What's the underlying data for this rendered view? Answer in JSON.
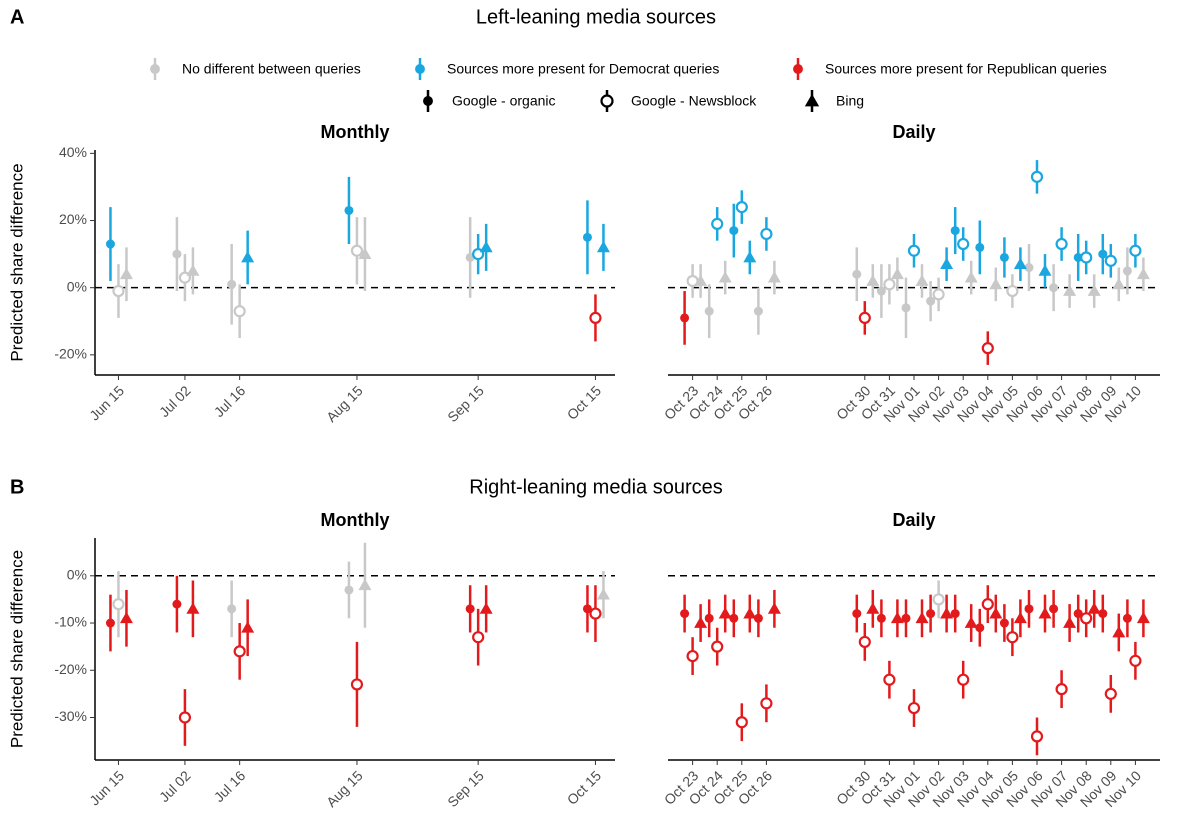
{
  "sections": [
    {
      "letter": "A",
      "title": "Left-leaning media sources"
    },
    {
      "letter": "B",
      "title": "Right-leaning media sources"
    }
  ],
  "color_legend": [
    {
      "label": "No different between queries",
      "color": "#c8c8c8"
    },
    {
      "label": "Sources more present for Democrat queries",
      "color": "#1aa7e0"
    },
    {
      "label": "Sources more present for Republican queries",
      "color": "#e31a1c"
    }
  ],
  "shape_legend": [
    {
      "label": "Google - organic",
      "marker": "circle"
    },
    {
      "label": "Google - Newsblock",
      "marker": "open-circle"
    },
    {
      "label": "Bing",
      "marker": "triangle"
    }
  ],
  "chart_data": [
    {
      "type": "errorbar",
      "title": "Monthly",
      "ylabel": "Predicted share difference",
      "x": [
        166,
        183,
        197,
        227,
        258,
        288
      ],
      "xlim": [
        160,
        293
      ],
      "xticks": [
        {
          "value": 166,
          "label": "Jun 15"
        },
        {
          "value": 183,
          "label": "Jul 02"
        },
        {
          "value": 197,
          "label": "Jul 16"
        },
        {
          "value": 227,
          "label": "Aug 15"
        },
        {
          "value": 258,
          "label": "Sep 15"
        },
        {
          "value": 288,
          "label": "Oct 15"
        }
      ],
      "ylim": [
        -26,
        41
      ],
      "yticks": [
        {
          "value": -20,
          "label": "-20%"
        },
        {
          "value": 0,
          "label": "0%"
        },
        {
          "value": 20,
          "label": "20%"
        },
        {
          "value": 40,
          "label": "40%"
        }
      ],
      "hline": 0,
      "series": [
        {
          "marker": "circle",
          "values": [
            13,
            10,
            1,
            23,
            9,
            15
          ],
          "errors": [
            11,
            11,
            12,
            10,
            12,
            11
          ],
          "colors": [
            "#1aa7e0",
            "#c8c8c8",
            "#c8c8c8",
            "#1aa7e0",
            "#c8c8c8",
            "#1aa7e0"
          ]
        },
        {
          "marker": "open-circle",
          "values": [
            -1,
            3,
            -7,
            11,
            10,
            -9
          ],
          "errors": [
            8,
            7,
            8,
            10,
            6,
            7
          ],
          "colors": [
            "#c8c8c8",
            "#c8c8c8",
            "#c8c8c8",
            "#c8c8c8",
            "#1aa7e0",
            "#e31a1c"
          ]
        },
        {
          "marker": "triangle",
          "values": [
            4,
            5,
            9,
            10,
            12,
            12
          ],
          "errors": [
            8,
            7,
            8,
            11,
            7,
            7
          ],
          "colors": [
            "#c8c8c8",
            "#c8c8c8",
            "#1aa7e0",
            "#c8c8c8",
            "#1aa7e0",
            "#1aa7e0"
          ]
        }
      ]
    },
    {
      "type": "errorbar",
      "title": "Daily",
      "x": [
        296,
        297,
        298,
        299,
        303,
        304,
        305,
        306,
        307,
        308,
        309,
        310,
        311,
        312,
        313,
        314
      ],
      "xlim": [
        295,
        315
      ],
      "xticks": [
        {
          "value": 296,
          "label": "Oct 23"
        },
        {
          "value": 297,
          "label": "Oct 24"
        },
        {
          "value": 298,
          "label": "Oct 25"
        },
        {
          "value": 299,
          "label": "Oct 26"
        },
        {
          "value": 303,
          "label": "Oct 30"
        },
        {
          "value": 304,
          "label": "Oct 31"
        },
        {
          "value": 305,
          "label": "Nov 01"
        },
        {
          "value": 306,
          "label": "Nov 02"
        },
        {
          "value": 307,
          "label": "Nov 03"
        },
        {
          "value": 308,
          "label": "Nov 04"
        },
        {
          "value": 309,
          "label": "Nov 05"
        },
        {
          "value": 310,
          "label": "Nov 06"
        },
        {
          "value": 311,
          "label": "Nov 07"
        },
        {
          "value": 312,
          "label": "Nov 08"
        },
        {
          "value": 313,
          "label": "Nov 09"
        },
        {
          "value": 314,
          "label": "Nov 10"
        }
      ],
      "ylim": [
        -26,
        41
      ],
      "hline": 0,
      "series": [
        {
          "marker": "circle",
          "values": [
            -9,
            -7,
            17,
            -7,
            4,
            -1,
            -6,
            -4,
            17,
            12,
            9,
            6,
            0,
            9,
            10,
            5
          ],
          "errors": [
            8,
            8,
            8,
            7,
            8,
            8,
            9,
            6,
            7,
            8,
            6,
            7,
            7,
            7,
            6,
            7
          ],
          "colors": [
            "#e31a1c",
            "#c8c8c8",
            "#1aa7e0",
            "#c8c8c8",
            "#c8c8c8",
            "#c8c8c8",
            "#c8c8c8",
            "#c8c8c8",
            "#1aa7e0",
            "#1aa7e0",
            "#1aa7e0",
            "#c8c8c8",
            "#c8c8c8",
            "#1aa7e0",
            "#1aa7e0",
            "#c8c8c8"
          ]
        },
        {
          "marker": "open-circle",
          "values": [
            2,
            19,
            24,
            16,
            -9,
            1,
            11,
            -2,
            13,
            -18,
            -1,
            33,
            13,
            9,
            8,
            11
          ],
          "errors": [
            5,
            5,
            5,
            5,
            5,
            6,
            5,
            5,
            5,
            5,
            5,
            5,
            5,
            5,
            5,
            5
          ],
          "colors": [
            "#c8c8c8",
            "#1aa7e0",
            "#1aa7e0",
            "#1aa7e0",
            "#e31a1c",
            "#c8c8c8",
            "#1aa7e0",
            "#c8c8c8",
            "#1aa7e0",
            "#e31a1c",
            "#c8c8c8",
            "#1aa7e0",
            "#1aa7e0",
            "#1aa7e0",
            "#1aa7e0",
            "#1aa7e0"
          ]
        },
        {
          "marker": "triangle",
          "values": [
            2,
            3,
            9,
            3,
            2,
            4,
            2,
            7,
            3,
            1,
            7,
            5,
            -1,
            -1,
            1,
            4
          ],
          "errors": [
            5,
            5,
            5,
            5,
            5,
            5,
            5,
            5,
            5,
            5,
            5,
            5,
            5,
            5,
            5,
            5
          ],
          "colors": [
            "#c8c8c8",
            "#c8c8c8",
            "#1aa7e0",
            "#c8c8c8",
            "#c8c8c8",
            "#c8c8c8",
            "#c8c8c8",
            "#1aa7e0",
            "#c8c8c8",
            "#c8c8c8",
            "#1aa7e0",
            "#1aa7e0",
            "#c8c8c8",
            "#c8c8c8",
            "#c8c8c8",
            "#c8c8c8"
          ]
        }
      ]
    },
    {
      "type": "errorbar",
      "title": "Monthly",
      "ylabel": "Predicted share difference",
      "x": [
        166,
        183,
        197,
        227,
        258,
        288
      ],
      "xlim": [
        160,
        293
      ],
      "xticks": [
        {
          "value": 166,
          "label": "Jun 15"
        },
        {
          "value": 183,
          "label": "Jul 02"
        },
        {
          "value": 197,
          "label": "Jul 16"
        },
        {
          "value": 227,
          "label": "Aug 15"
        },
        {
          "value": 258,
          "label": "Sep 15"
        },
        {
          "value": 288,
          "label": "Oct 15"
        }
      ],
      "ylim": [
        -39,
        8
      ],
      "yticks": [
        {
          "value": -30,
          "label": "-30%"
        },
        {
          "value": -20,
          "label": "-20%"
        },
        {
          "value": -10,
          "label": "-10%"
        },
        {
          "value": 0,
          "label": "0%"
        }
      ],
      "hline": 0,
      "series": [
        {
          "marker": "circle",
          "values": [
            -10,
            -6,
            -7,
            -3,
            -7,
            -7
          ],
          "errors": [
            6,
            6,
            6,
            6,
            5,
            5
          ],
          "colors": [
            "#e31a1c",
            "#e31a1c",
            "#c8c8c8",
            "#c8c8c8",
            "#e31a1c",
            "#e31a1c"
          ]
        },
        {
          "marker": "open-circle",
          "values": [
            -6,
            -30,
            -16,
            -23,
            -13,
            -8
          ],
          "errors": [
            7,
            6,
            6,
            9,
            6,
            6
          ],
          "colors": [
            "#c8c8c8",
            "#e31a1c",
            "#e31a1c",
            "#e31a1c",
            "#e31a1c",
            "#e31a1c"
          ]
        },
        {
          "marker": "triangle",
          "values": [
            -9,
            -7,
            -11,
            -2,
            -7,
            -4
          ],
          "errors": [
            6,
            6,
            6,
            9,
            5,
            5
          ],
          "colors": [
            "#e31a1c",
            "#e31a1c",
            "#e31a1c",
            "#c8c8c8",
            "#e31a1c",
            "#c8c8c8"
          ]
        }
      ]
    },
    {
      "type": "errorbar",
      "title": "Daily",
      "x": [
        296,
        297,
        298,
        299,
        303,
        304,
        305,
        306,
        307,
        308,
        309,
        310,
        311,
        312,
        313,
        314
      ],
      "xlim": [
        295,
        315
      ],
      "xticks": [
        {
          "value": 296,
          "label": "Oct 23"
        },
        {
          "value": 297,
          "label": "Oct 24"
        },
        {
          "value": 298,
          "label": "Oct 25"
        },
        {
          "value": 299,
          "label": "Oct 26"
        },
        {
          "value": 303,
          "label": "Oct 30"
        },
        {
          "value": 304,
          "label": "Oct 31"
        },
        {
          "value": 305,
          "label": "Nov 01"
        },
        {
          "value": 306,
          "label": "Nov 02"
        },
        {
          "value": 307,
          "label": "Nov 03"
        },
        {
          "value": 308,
          "label": "Nov 04"
        },
        {
          "value": 309,
          "label": "Nov 05"
        },
        {
          "value": 310,
          "label": "Nov 06"
        },
        {
          "value": 311,
          "label": "Nov 07"
        },
        {
          "value": 312,
          "label": "Nov 08"
        },
        {
          "value": 313,
          "label": "Nov 09"
        },
        {
          "value": 314,
          "label": "Nov 10"
        }
      ],
      "ylim": [
        -39,
        8
      ],
      "hline": 0,
      "series": [
        {
          "marker": "circle",
          "values": [
            -8,
            -9,
            -9,
            -9,
            -8,
            -9,
            -9,
            -8,
            -8,
            -11,
            -10,
            -7,
            -7,
            -8,
            -8,
            -9
          ],
          "errors": [
            4,
            4,
            4,
            4,
            4,
            4,
            4,
            4,
            4,
            4,
            4,
            4,
            4,
            4,
            4,
            4
          ],
          "colors": [
            "#e31a1c",
            "#e31a1c",
            "#e31a1c",
            "#e31a1c",
            "#e31a1c",
            "#e31a1c",
            "#e31a1c",
            "#e31a1c",
            "#e31a1c",
            "#e31a1c",
            "#e31a1c",
            "#e31a1c",
            "#e31a1c",
            "#e31a1c",
            "#e31a1c",
            "#e31a1c"
          ]
        },
        {
          "marker": "open-circle",
          "values": [
            -17,
            -15,
            -31,
            -27,
            -14,
            -22,
            -28,
            -5,
            -22,
            -6,
            -13,
            -34,
            -24,
            -9,
            -25,
            -18
          ],
          "errors": [
            4,
            4,
            4,
            4,
            4,
            4,
            4,
            4,
            4,
            4,
            4,
            4,
            4,
            4,
            4,
            4
          ],
          "colors": [
            "#e31a1c",
            "#e31a1c",
            "#e31a1c",
            "#e31a1c",
            "#e31a1c",
            "#e31a1c",
            "#e31a1c",
            "#c8c8c8",
            "#e31a1c",
            "#e31a1c",
            "#e31a1c",
            "#e31a1c",
            "#e31a1c",
            "#e31a1c",
            "#e31a1c",
            "#e31a1c"
          ]
        },
        {
          "marker": "triangle",
          "values": [
            -10,
            -8,
            -8,
            -7,
            -7,
            -9,
            -9,
            -8,
            -10,
            -8,
            -9,
            -8,
            -10,
            -7,
            -12,
            -9
          ],
          "errors": [
            4,
            4,
            4,
            4,
            4,
            4,
            4,
            4,
            4,
            4,
            4,
            4,
            4,
            4,
            4,
            4
          ],
          "colors": [
            "#e31a1c",
            "#e31a1c",
            "#e31a1c",
            "#e31a1c",
            "#e31a1c",
            "#e31a1c",
            "#e31a1c",
            "#e31a1c",
            "#e31a1c",
            "#e31a1c",
            "#e31a1c",
            "#e31a1c",
            "#e31a1c",
            "#e31a1c",
            "#e31a1c",
            "#e31a1c"
          ]
        }
      ]
    }
  ]
}
